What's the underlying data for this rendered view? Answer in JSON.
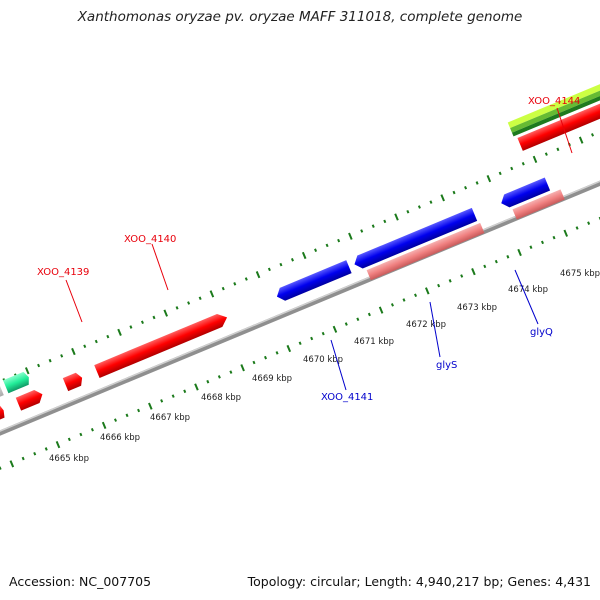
{
  "title": "Xanthomonas oryzae pv. oryzae MAFF 311018, complete genome",
  "footer": {
    "accession_label": "Accession: NC_007705",
    "summary": "Topology: circular; Length: 4,940,217 bp; Genes: 4,431"
  },
  "scale_labels": [
    "4665 kbp",
    "4666 kbp",
    "4667 kbp",
    "4668 kbp",
    "4669 kbp",
    "4670 kbp",
    "4671 kbp",
    "4672 kbp",
    "4673 kbp",
    "4674 kbp",
    "4675 kbp"
  ],
  "gene_labels": [
    {
      "text": "XOO_4139",
      "color": "#e8000b"
    },
    {
      "text": "XOO_4140",
      "color": "#e8000b"
    },
    {
      "text": "XOO_4144",
      "color": "#e8000b"
    },
    {
      "text": "XOO_4141",
      "color": "#0000cc"
    },
    {
      "text": "glyS",
      "color": "#0000cc"
    },
    {
      "text": "glyQ",
      "color": "#0000cc"
    }
  ],
  "colors": {
    "forward_cds": "#ff0000",
    "reverse_cds": "#0000ee",
    "rna": "#f08080",
    "backbone": "#888888",
    "ticks": "#1b7a1b",
    "teal_feature": "#22ee99",
    "grey_feature": "#c8c8c8",
    "green_bands": [
      "#ccff44",
      "#66bb33",
      "#1e7a1e"
    ]
  }
}
